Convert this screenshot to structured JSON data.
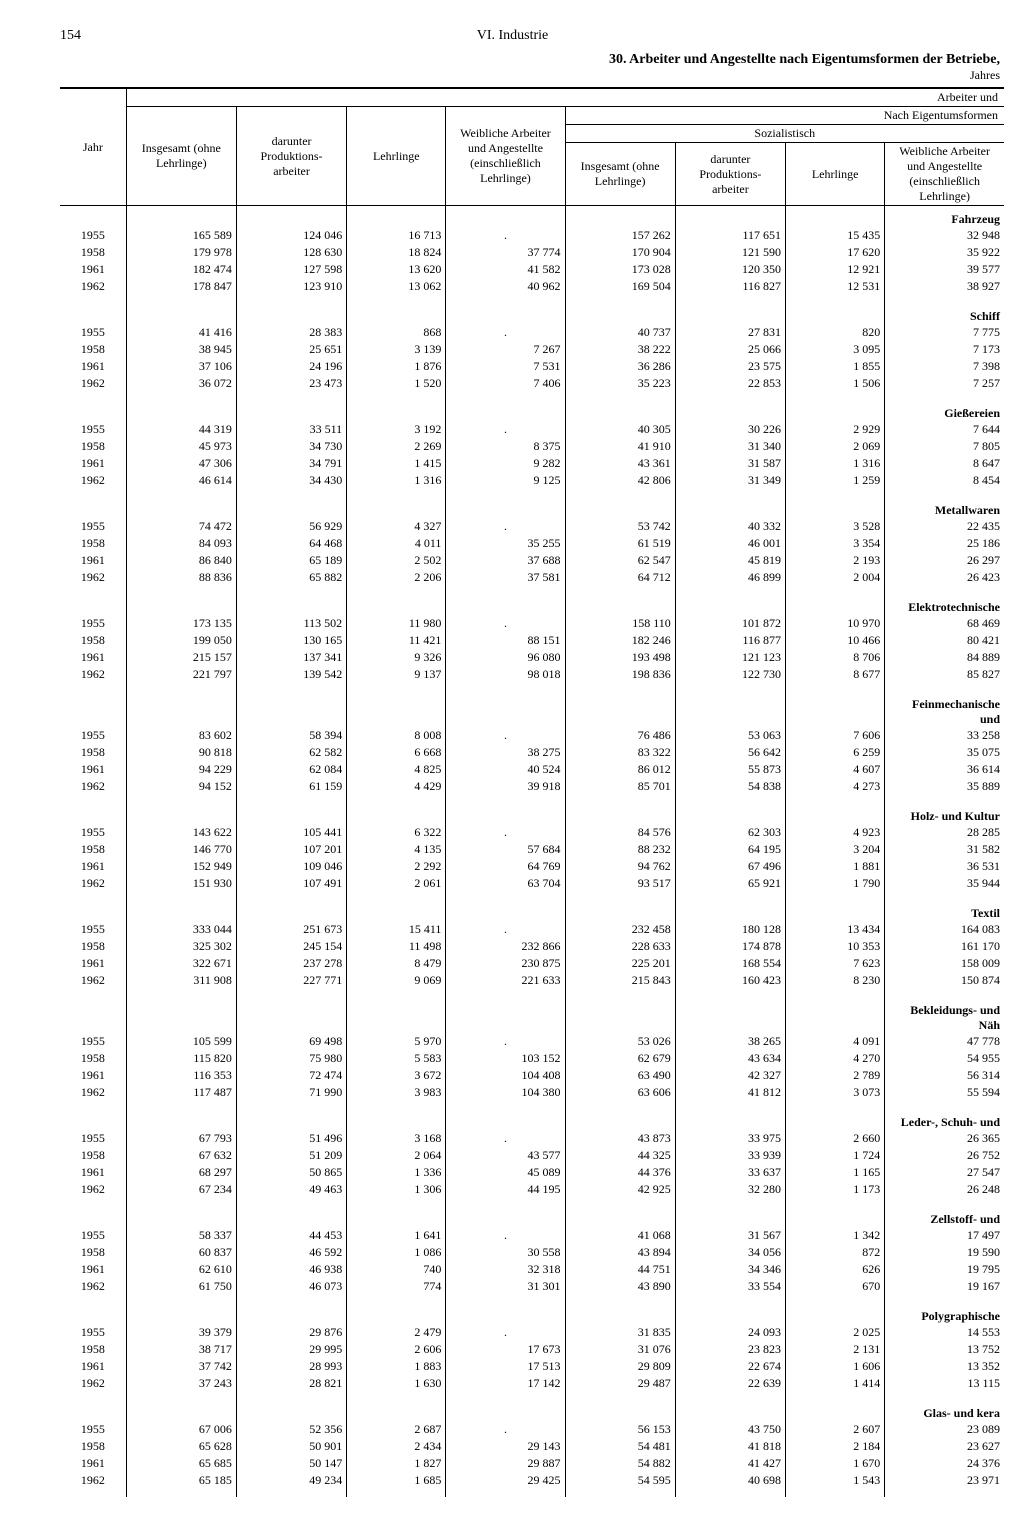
{
  "page": {
    "number": "154",
    "chapter": "VI. Industrie"
  },
  "title": "30. Arbeiter und Angestellte nach Eigentumsformen der Betriebe,",
  "subtitle": "Jahres",
  "heads": {
    "arbeiter_und": "Arbeiter und",
    "nach_eig": "Nach Eigentumsformen",
    "sozial": "Sozialistisch",
    "jahr": "Jahr",
    "insg": "Insgesamt (ohne Lehrlinge)",
    "prod": "darunter Produktions- arbeiter",
    "lehr": "Lehrlinge",
    "weibl": "Weibliche Arbeiter und Angestellte (einschließlich Lehrlinge)"
  },
  "sections": [
    {
      "name": "Fahrzeug",
      "rows": [
        [
          "1955",
          "165 589",
          "124 046",
          "16 713",
          ".",
          "157 262",
          "117 651",
          "15 435",
          "32 948"
        ],
        [
          "1958",
          "179 978",
          "128 630",
          "18 824",
          "37 774",
          "170 904",
          "121 590",
          "17 620",
          "35 922"
        ],
        [
          "1961",
          "182 474",
          "127 598",
          "13 620",
          "41 582",
          "173 028",
          "120 350",
          "12 921",
          "39 577"
        ],
        [
          "1962",
          "178 847",
          "123 910",
          "13 062",
          "40 962",
          "169 504",
          "116 827",
          "12 531",
          "38 927"
        ]
      ]
    },
    {
      "name": "Schiff",
      "rows": [
        [
          "1955",
          "41 416",
          "28 383",
          "868",
          ".",
          "40 737",
          "27 831",
          "820",
          "7 775"
        ],
        [
          "1958",
          "38 945",
          "25 651",
          "3 139",
          "7 267",
          "38 222",
          "25 066",
          "3 095",
          "7 173"
        ],
        [
          "1961",
          "37 106",
          "24 196",
          "1 876",
          "7 531",
          "36 286",
          "23 575",
          "1 855",
          "7 398"
        ],
        [
          "1962",
          "36 072",
          "23 473",
          "1 520",
          "7 406",
          "35 223",
          "22 853",
          "1 506",
          "7 257"
        ]
      ]
    },
    {
      "name": "Gießereien",
      "rows": [
        [
          "1955",
          "44 319",
          "33 511",
          "3 192",
          ".",
          "40 305",
          "30 226",
          "2 929",
          "7 644"
        ],
        [
          "1958",
          "45 973",
          "34 730",
          "2 269",
          "8 375",
          "41 910",
          "31 340",
          "2 069",
          "7 805"
        ],
        [
          "1961",
          "47 306",
          "34 791",
          "1 415",
          "9 282",
          "43 361",
          "31 587",
          "1 316",
          "8 647"
        ],
        [
          "1962",
          "46 614",
          "34 430",
          "1 316",
          "9 125",
          "42 806",
          "31 349",
          "1 259",
          "8 454"
        ]
      ]
    },
    {
      "name": "Metallwaren",
      "rows": [
        [
          "1955",
          "74 472",
          "56 929",
          "4 327",
          ".",
          "53 742",
          "40 332",
          "3 528",
          "22 435"
        ],
        [
          "1958",
          "84 093",
          "64 468",
          "4 011",
          "35 255",
          "61 519",
          "46 001",
          "3 354",
          "25 186"
        ],
        [
          "1961",
          "86 840",
          "65 189",
          "2 502",
          "37 688",
          "62 547",
          "45 819",
          "2 193",
          "26 297"
        ],
        [
          "1962",
          "88 836",
          "65 882",
          "2 206",
          "37 581",
          "64 712",
          "46 899",
          "2 004",
          "26 423"
        ]
      ]
    },
    {
      "name": "Elektrotechnische",
      "rows": [
        [
          "1955",
          "173 135",
          "113 502",
          "11 980",
          ".",
          "158 110",
          "101 872",
          "10 970",
          "68 469"
        ],
        [
          "1958",
          "199 050",
          "130 165",
          "11 421",
          "88 151",
          "182 246",
          "116 877",
          "10 466",
          "80 421"
        ],
        [
          "1961",
          "215 157",
          "137 341",
          "9 326",
          "96 080",
          "193 498",
          "121 123",
          "8 706",
          "84 889"
        ],
        [
          "1962",
          "221 797",
          "139 542",
          "9 137",
          "98 018",
          "198 836",
          "122 730",
          "8 677",
          "85 827"
        ]
      ]
    },
    {
      "name": "Feinmechanische und",
      "rows": [
        [
          "1955",
          "83 602",
          "58 394",
          "8 008",
          ".",
          "76 486",
          "53 063",
          "7 606",
          "33 258"
        ],
        [
          "1958",
          "90 818",
          "62 582",
          "6 668",
          "38 275",
          "83 322",
          "56 642",
          "6 259",
          "35 075"
        ],
        [
          "1961",
          "94 229",
          "62 084",
          "4 825",
          "40 524",
          "86 012",
          "55 873",
          "4 607",
          "36 614"
        ],
        [
          "1962",
          "94 152",
          "61 159",
          "4 429",
          "39 918",
          "85 701",
          "54 838",
          "4 273",
          "35 889"
        ]
      ]
    },
    {
      "name": "Holz- und Kultur",
      "rows": [
        [
          "1955",
          "143 622",
          "105 441",
          "6 322",
          ".",
          "84 576",
          "62 303",
          "4 923",
          "28 285"
        ],
        [
          "1958",
          "146 770",
          "107 201",
          "4 135",
          "57 684",
          "88 232",
          "64 195",
          "3 204",
          "31 582"
        ],
        [
          "1961",
          "152 949",
          "109 046",
          "2 292",
          "64 769",
          "94 762",
          "67 496",
          "1 881",
          "36 531"
        ],
        [
          "1962",
          "151 930",
          "107 491",
          "2 061",
          "63 704",
          "93 517",
          "65 921",
          "1 790",
          "35 944"
        ]
      ]
    },
    {
      "name": "Textil",
      "rows": [
        [
          "1955",
          "333 044",
          "251 673",
          "15 411",
          ".",
          "232 458",
          "180 128",
          "13 434",
          "164 083"
        ],
        [
          "1958",
          "325 302",
          "245 154",
          "11 498",
          "232 866",
          "228 633",
          "174 878",
          "10 353",
          "161 170"
        ],
        [
          "1961",
          "322 671",
          "237 278",
          "8 479",
          "230 875",
          "225 201",
          "168 554",
          "7 623",
          "158 009"
        ],
        [
          "1962",
          "311 908",
          "227 771",
          "9 069",
          "221 633",
          "215 843",
          "160 423",
          "8 230",
          "150 874"
        ]
      ]
    },
    {
      "name": "Bekleidungs- und Näh",
      "rows": [
        [
          "1955",
          "105 599",
          "69 498",
          "5 970",
          ".",
          "53 026",
          "38 265",
          "4 091",
          "47 778"
        ],
        [
          "1958",
          "115 820",
          "75 980",
          "5 583",
          "103 152",
          "62 679",
          "43 634",
          "4 270",
          "54 955"
        ],
        [
          "1961",
          "116 353",
          "72 474",
          "3 672",
          "104 408",
          "63 490",
          "42 327",
          "2 789",
          "56 314"
        ],
        [
          "1962",
          "117 487",
          "71 990",
          "3 983",
          "104 380",
          "63 606",
          "41 812",
          "3 073",
          "55 594"
        ]
      ]
    },
    {
      "name": "Leder-, Schuh- und",
      "rows": [
        [
          "1955",
          "67 793",
          "51 496",
          "3 168",
          ".",
          "43 873",
          "33 975",
          "2 660",
          "26 365"
        ],
        [
          "1958",
          "67 632",
          "51 209",
          "2 064",
          "43 577",
          "44 325",
          "33 939",
          "1 724",
          "26 752"
        ],
        [
          "1961",
          "68 297",
          "50 865",
          "1 336",
          "45 089",
          "44 376",
          "33 637",
          "1 165",
          "27 547"
        ],
        [
          "1962",
          "67 234",
          "49 463",
          "1 306",
          "44 195",
          "42 925",
          "32 280",
          "1 173",
          "26 248"
        ]
      ]
    },
    {
      "name": "Zellstoff- und",
      "rows": [
        [
          "1955",
          "58 337",
          "44 453",
          "1 641",
          ".",
          "41 068",
          "31 567",
          "1 342",
          "17 497"
        ],
        [
          "1958",
          "60 837",
          "46 592",
          "1 086",
          "30 558",
          "43 894",
          "34 056",
          "872",
          "19 590"
        ],
        [
          "1961",
          "62 610",
          "46 938",
          "740",
          "32 318",
          "44 751",
          "34 346",
          "626",
          "19 795"
        ],
        [
          "1962",
          "61 750",
          "46 073",
          "774",
          "31 301",
          "43 890",
          "33 554",
          "670",
          "19 167"
        ]
      ]
    },
    {
      "name": "Polygraphische",
      "rows": [
        [
          "1955",
          "39 379",
          "29 876",
          "2 479",
          ".",
          "31 835",
          "24 093",
          "2 025",
          "14 553"
        ],
        [
          "1958",
          "38 717",
          "29 995",
          "2 606",
          "17 673",
          "31 076",
          "23 823",
          "2 131",
          "13 752"
        ],
        [
          "1961",
          "37 742",
          "28 993",
          "1 883",
          "17 513",
          "29 809",
          "22 674",
          "1 606",
          "13 352"
        ],
        [
          "1962",
          "37 243",
          "28 821",
          "1 630",
          "17 142",
          "29 487",
          "22 639",
          "1 414",
          "13 115"
        ]
      ]
    },
    {
      "name": "Glas- und kera",
      "rows": [
        [
          "1955",
          "67 006",
          "52 356",
          "2 687",
          ".",
          "56 153",
          "43 750",
          "2 607",
          "23 089"
        ],
        [
          "1958",
          "65 628",
          "50 901",
          "2 434",
          "29 143",
          "54 481",
          "41 818",
          "2 184",
          "23 627"
        ],
        [
          "1961",
          "65 685",
          "50 147",
          "1 827",
          "29 887",
          "54 882",
          "41 427",
          "1 670",
          "24 376"
        ],
        [
          "1962",
          "65 185",
          "49 234",
          "1 685",
          "29 425",
          "54 595",
          "40 698",
          "1 543",
          "23 971"
        ]
      ]
    }
  ]
}
